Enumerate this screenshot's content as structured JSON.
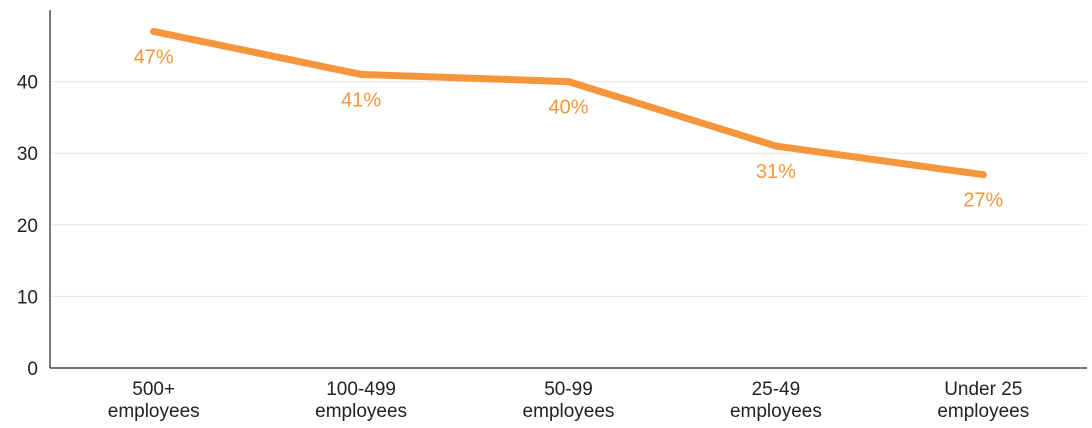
{
  "chart_data": {
    "type": "line",
    "categories": [
      [
        "500+",
        "employees"
      ],
      [
        "100-499",
        "employees"
      ],
      [
        "50-99",
        "employees"
      ],
      [
        "25-49",
        "employees"
      ],
      [
        "Under 25",
        "employees"
      ]
    ],
    "series": [
      {
        "values": [
          47,
          41,
          40,
          31,
          27
        ],
        "labels": [
          "47%",
          "41%",
          "40%",
          "31%",
          "27%"
        ],
        "color": "#F5963C"
      }
    ],
    "yticks": [
      "0",
      "10",
      "20",
      "30",
      "40"
    ],
    "ylim": [
      0,
      50
    ],
    "grid": true,
    "title": "",
    "xlabel": "",
    "ylabel": ""
  }
}
